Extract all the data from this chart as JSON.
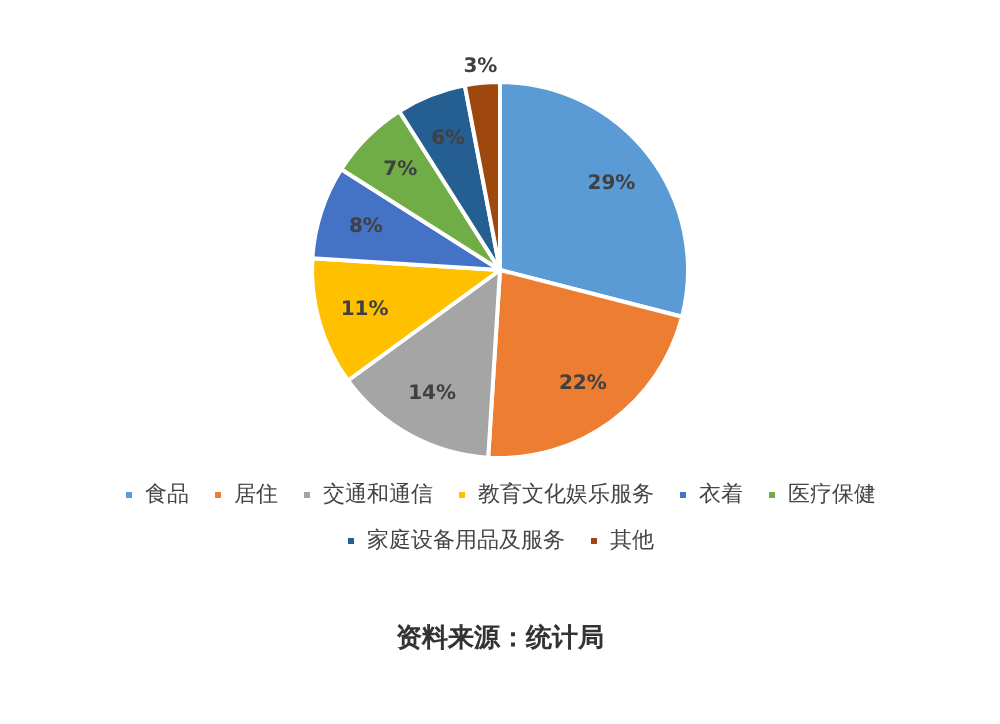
{
  "chart_data": {
    "type": "pie",
    "categories": [
      "食品",
      "居住",
      "交通和通信",
      "教育文化娱乐服务",
      "衣着",
      "医疗保健",
      "家庭设备用品及服务",
      "其他"
    ],
    "values": [
      29,
      22,
      14,
      11,
      8,
      7,
      6,
      3
    ],
    "colors": [
      "#5b9bd5",
      "#ed7d31",
      "#a5a5a5",
      "#ffc000",
      "#4472c4",
      "#70ad47",
      "#255e91",
      "#9e480e"
    ],
    "value_labels": [
      "29%",
      "22%",
      "14%",
      "11%",
      "8%",
      "7%",
      "6%",
      "3%"
    ],
    "legend": "bottom",
    "annotations": [
      "资料来源：统计局"
    ]
  }
}
